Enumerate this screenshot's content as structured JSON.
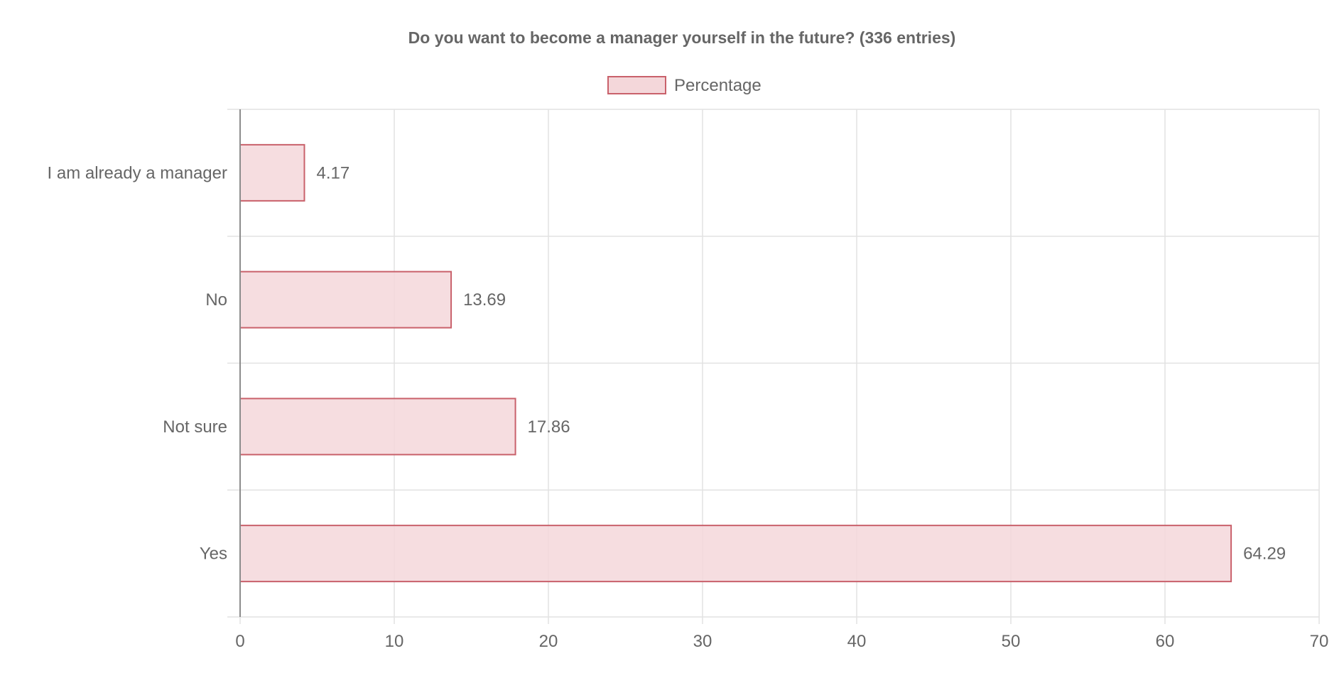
{
  "chart_data": {
    "type": "bar",
    "orientation": "horizontal",
    "title": "Do you want to become a manager yourself in the future? (336 entries)",
    "categories": [
      "I am already a manager",
      "No",
      "Not sure",
      "Yes"
    ],
    "series": [
      {
        "name": "Percentage",
        "values": [
          4.17,
          13.69,
          17.86,
          64.29
        ]
      }
    ],
    "value_labels": [
      "4.17",
      "13.69",
      "17.86",
      "64.29"
    ],
    "x_ticks": [
      "0",
      "10",
      "20",
      "30",
      "40",
      "50",
      "60",
      "70"
    ],
    "xlim": [
      0,
      70
    ],
    "xlabel": "",
    "ylabel": "",
    "grid": true,
    "legend_position": "top-center",
    "colors": {
      "bar_fill": "#f4d7da",
      "bar_stroke": "#c9616b",
      "grid": "#e2e2e2",
      "axis": "#8c8c8c",
      "text": "#666666"
    }
  }
}
